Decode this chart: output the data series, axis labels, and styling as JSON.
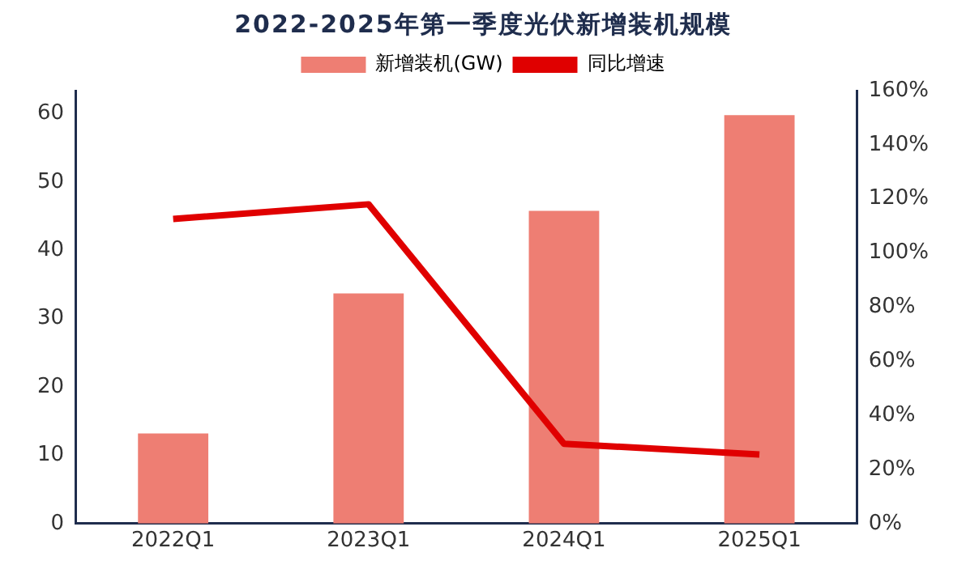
{
  "chart_data": {
    "type": "bar",
    "title": "2022-2025年第一季度光伏新增装机规模",
    "categories": [
      "2022Q1",
      "2023Q1",
      "2024Q1",
      "2025Q1"
    ],
    "series": [
      {
        "name": "新增装机(GW)",
        "color": "#ee7e73",
        "values": [
          13.2,
          33.7,
          45.8,
          59.8
        ]
      },
      {
        "name": "同比增速",
        "type": "line",
        "axis": "y2",
        "color": "#e00000",
        "values": [
          112.6,
          118,
          29.5,
          25.5
        ]
      }
    ],
    "ylim": [
      0,
      63.4
    ],
    "yticks": [
      0,
      10,
      20,
      30,
      40,
      50,
      60
    ],
    "y2lim": [
      0,
      160
    ],
    "y2ticks": [
      {
        "value": 0,
        "label": "0%"
      },
      {
        "value": 20,
        "label": "20%"
      },
      {
        "value": 40,
        "label": "40%"
      },
      {
        "value": 60,
        "label": "60%"
      },
      {
        "value": 80,
        "label": "80%"
      },
      {
        "value": 100,
        "label": "100%"
      },
      {
        "value": 120,
        "label": "120%"
      },
      {
        "value": 140,
        "label": "140%"
      },
      {
        "value": 160,
        "label": "160%"
      }
    ],
    "legend": "top",
    "grid": false,
    "marker": "none"
  }
}
